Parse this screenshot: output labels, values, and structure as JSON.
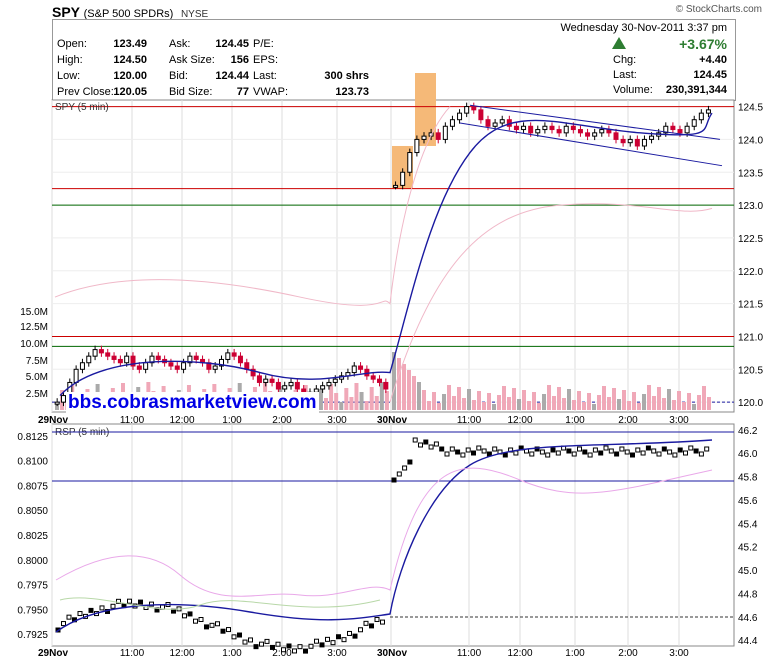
{
  "header": {
    "symbol": "SPY",
    "name": "(S&P 500 SPDRs)",
    "exchange": "NYSE",
    "watermark": "© StockCharts.com"
  },
  "quote": {
    "date": "Wednesday  30-Nov-2011  3:37 pm",
    "change_pct": "+3.67%",
    "rows": [
      [
        {
          "l": "Open:",
          "v": "123.49"
        },
        {
          "l": "Ask:",
          "v": "124.45"
        },
        {
          "l": "P/E:",
          "v": ""
        }
      ],
      [
        {
          "l": "High:",
          "v": "124.50"
        },
        {
          "l": "Ask Size:",
          "v": "156"
        },
        {
          "l": "EPS:",
          "v": ""
        }
      ],
      [
        {
          "l": "Low:",
          "v": "120.00"
        },
        {
          "l": "Bid:",
          "v": "124.44"
        },
        {
          "l": "Last:",
          "v": "300 shrs"
        }
      ],
      [
        {
          "l": "Prev Close:",
          "v": "120.05"
        },
        {
          "l": "Bid Size:",
          "v": "77"
        },
        {
          "l": "VWAP:",
          "v": "123.73"
        }
      ]
    ],
    "right": [
      {
        "l": "Chg:",
        "v": "+4.40"
      },
      {
        "l": "Last:",
        "v": "124.45"
      },
      {
        "l": "Volume:",
        "v": "230,391,344"
      }
    ]
  },
  "site_text": "bbs.cobrasmarketview.com",
  "colors": {
    "up": "#000000",
    "down": "#cc0033",
    "ma": "#1a1aa0",
    "pink": "#f0b8c8",
    "red_line": "#cc0000",
    "green_line": "#006600",
    "orange": "#f5b978",
    "vol": "#f0a8b8",
    "vol_gray": "#aaaaaa"
  },
  "chart_data": [
    {
      "type": "candlestick",
      "title": "SPY (5 min)",
      "y_ticks": [
        124.5,
        124.0,
        123.5,
        123.0,
        122.5,
        122.0,
        121.5,
        121.0,
        120.5,
        120.0
      ],
      "volume_ticks": [
        "15.0M",
        "12.5M",
        "10.0M",
        "7.5M",
        "5.0M",
        "2.5M"
      ],
      "x_ticks": [
        "29Nov",
        "11:00",
        "12:00",
        "1:00",
        "2:00",
        "3:00",
        "30Nov",
        "11:00",
        "12:00",
        "1:00",
        "2:00",
        "3:00"
      ],
      "ylim": [
        119.85,
        124.6
      ],
      "horizontal_lines": [
        {
          "value": 124.5,
          "color": "red"
        },
        {
          "value": 123.25,
          "color": "red"
        },
        {
          "value": 123.0,
          "color": "green"
        },
        {
          "value": 121.0,
          "color": "red"
        },
        {
          "value": 120.85,
          "color": "green"
        },
        {
          "value": 120.0,
          "color": "blue-dashed"
        }
      ],
      "day1_close": [
        120.0,
        120.1,
        120.3,
        120.5,
        120.6,
        120.7,
        120.8,
        120.75,
        120.7,
        120.65,
        120.6,
        120.7,
        120.55,
        120.5,
        120.6,
        120.7,
        120.65,
        120.6,
        120.55,
        120.5,
        120.6,
        120.7,
        120.65,
        120.6,
        120.5,
        120.55,
        120.65,
        120.75,
        120.7,
        120.6,
        120.5,
        120.4,
        120.3,
        120.35,
        120.3,
        120.2,
        120.25,
        120.3,
        120.2,
        120.1,
        120.15,
        120.2,
        120.25,
        120.3,
        120.35,
        120.4,
        120.45,
        120.55,
        120.5,
        120.4,
        120.35,
        120.3,
        120.2
      ],
      "day2_close": [
        123.3,
        123.5,
        123.8,
        124.0,
        124.05,
        124.1,
        124.0,
        124.2,
        124.3,
        124.4,
        124.5,
        124.45,
        124.3,
        124.2,
        124.25,
        124.3,
        124.2,
        124.15,
        124.2,
        124.1,
        124.15,
        124.2,
        124.15,
        124.1,
        124.2,
        124.15,
        124.1,
        124.05,
        124.1,
        124.15,
        124.1,
        124.0,
        123.95,
        124.0,
        123.9,
        124.0,
        124.05,
        124.1,
        124.2,
        124.15,
        124.1,
        124.2,
        124.3,
        124.4,
        124.45
      ]
    },
    {
      "type": "line",
      "title": "RSP (5 min)",
      "y_ticks_left": [
        0.8125,
        0.81,
        0.8075,
        0.805,
        0.8025,
        0.8,
        0.7975,
        0.795,
        0.7925
      ],
      "y_ticks_right": [
        46.2,
        46.0,
        45.8,
        45.6,
        45.4,
        45.2,
        45.0,
        44.8,
        44.6,
        44.4
      ],
      "x_ticks": [
        "29Nov",
        "11:00",
        "12:00",
        "1:00",
        "2:00",
        "3:00",
        "30Nov",
        "11:00",
        "12:00",
        "1:00",
        "2:00",
        "3:00"
      ]
    }
  ]
}
